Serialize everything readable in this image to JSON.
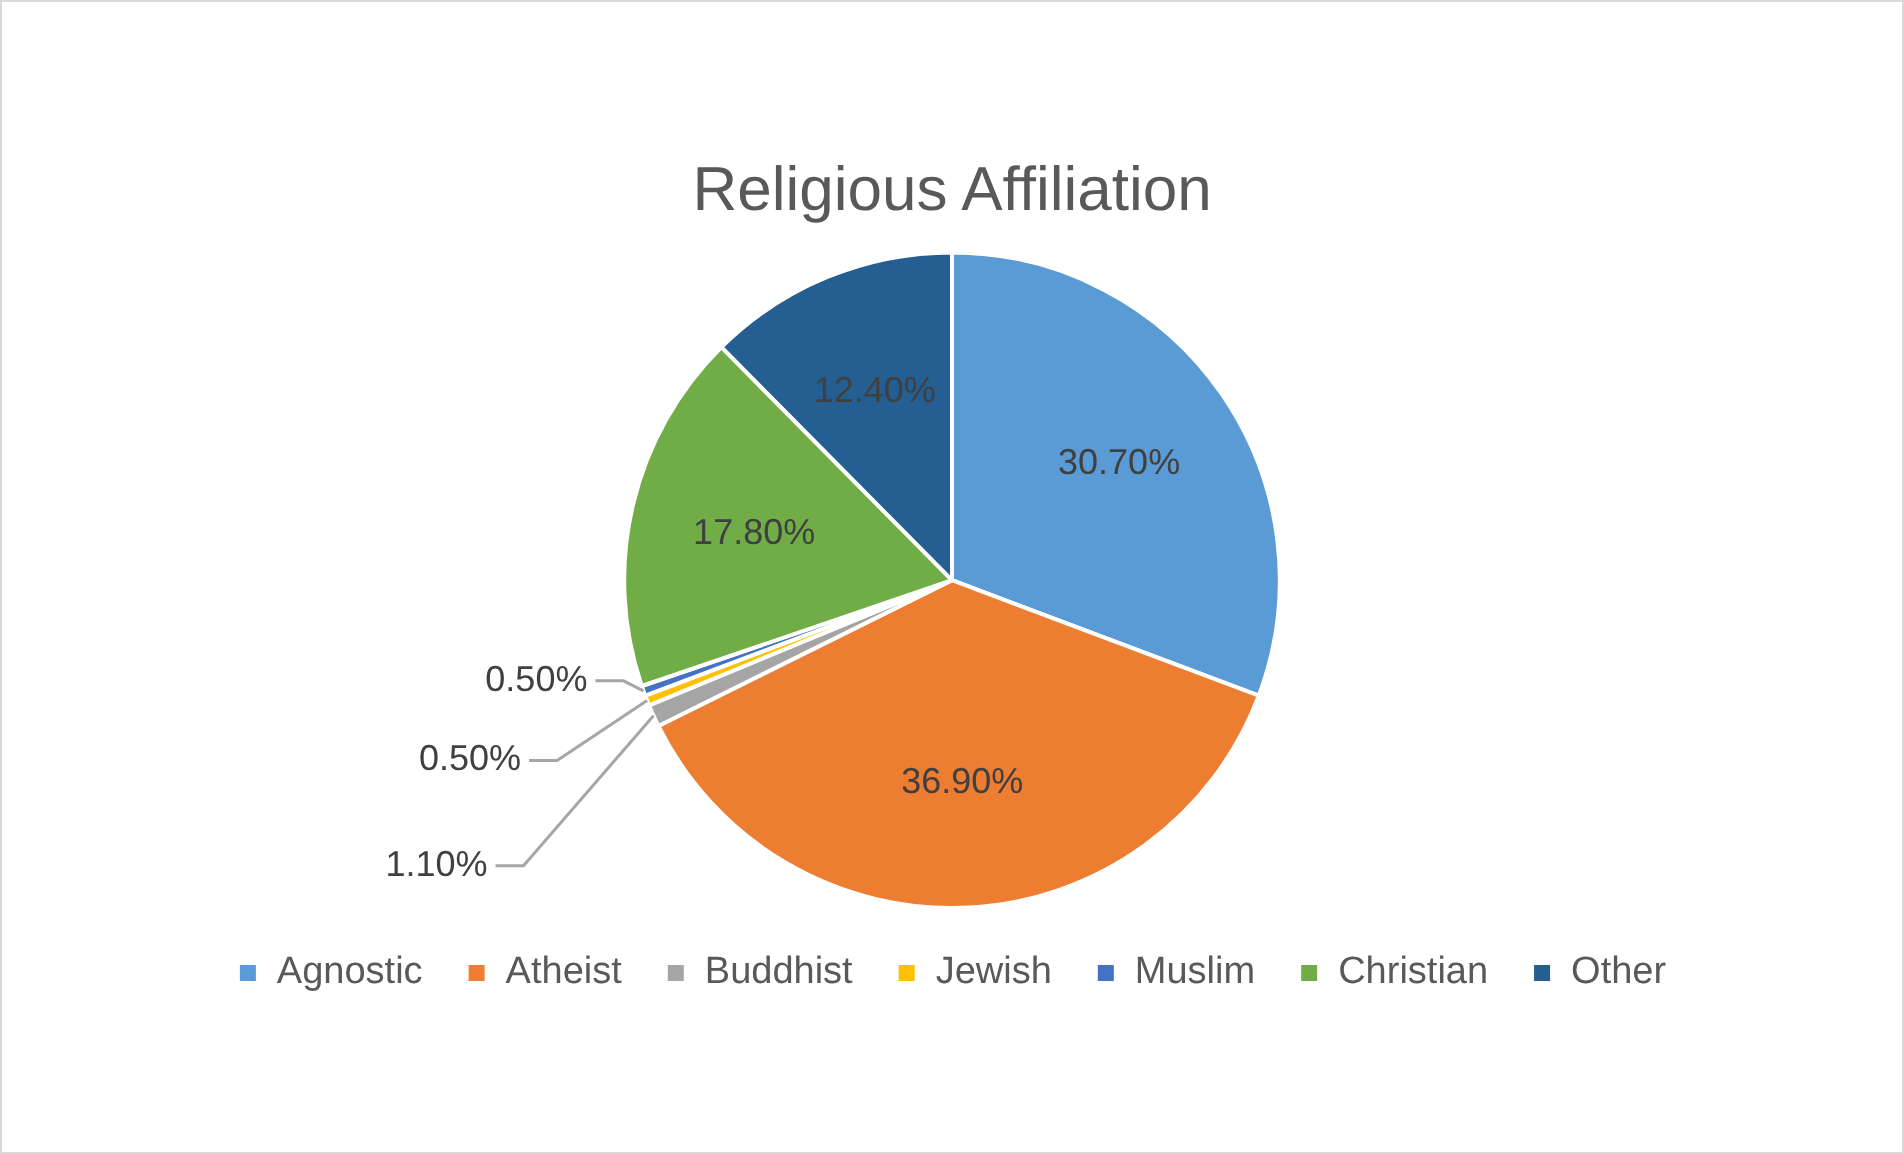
{
  "chart_data": {
    "type": "pie",
    "title": "Religious Affiliation",
    "categories": [
      "Agnostic",
      "Atheist",
      "Buddhist",
      "Jewish",
      "Muslim",
      "Christian",
      "Other"
    ],
    "values": [
      30.7,
      36.9,
      1.1,
      0.5,
      0.5,
      17.8,
      12.4
    ],
    "colors": [
      "#5b9bd5",
      "#ed7d31",
      "#a5a5a5",
      "#ffc000",
      "#4472c4",
      "#70ad47",
      "#255e91"
    ],
    "value_labels": [
      "30.70%",
      "36.90%",
      "1.10%",
      "0.50%",
      "0.50%",
      "17.80%",
      "12.40%"
    ],
    "legend": "bottom"
  }
}
